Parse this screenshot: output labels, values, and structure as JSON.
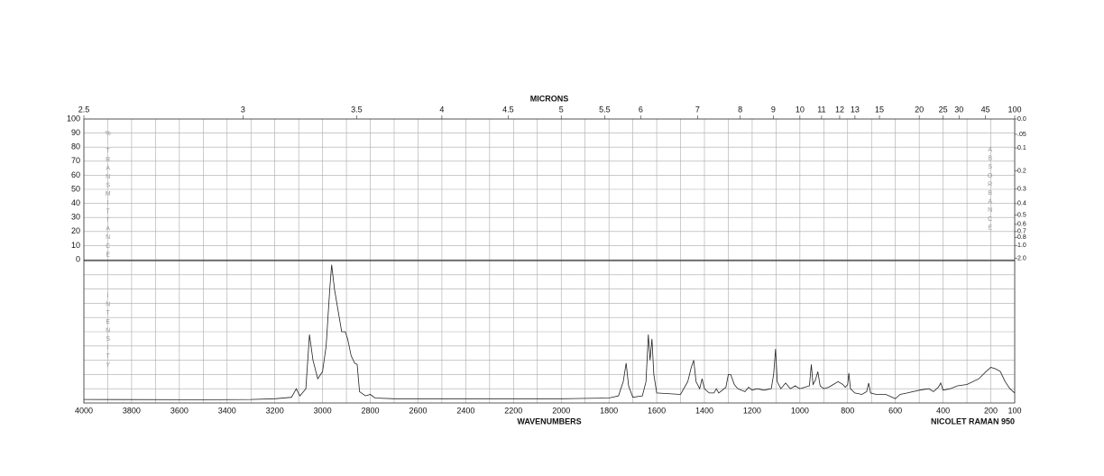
{
  "chart_data": {
    "type": "line",
    "top_axis_label": "MICRONS",
    "xlabel": "WAVENUMBERS",
    "instrument": "NICOLET RAMAN 950",
    "left_top_label": "% TRANSMITTANCE",
    "left_bottom_label": "INTENSITY",
    "right_label": "ABSORBANCE",
    "xlim": [
      4000,
      100
    ],
    "xticks": [
      4000,
      3800,
      3600,
      3400,
      3200,
      3000,
      2800,
      2600,
      2400,
      2200,
      2000,
      1800,
      1600,
      1400,
      1200,
      1000,
      800,
      600,
      400,
      200,
      100
    ],
    "xgrid": [
      4000,
      3900,
      3800,
      3700,
      3600,
      3500,
      3400,
      3300,
      3200,
      3100,
      3000,
      2900,
      2800,
      2700,
      2600,
      2500,
      2400,
      2300,
      2200,
      2100,
      2000,
      1900,
      1800,
      1700,
      1600,
      1500,
      1400,
      1300,
      1200,
      1100,
      1000,
      900,
      800,
      700,
      600,
      500,
      400,
      300,
      200,
      100
    ],
    "micron_ticks": [
      2.5,
      3,
      3.5,
      4,
      4.5,
      5,
      5.5,
      6,
      7,
      8,
      9,
      10,
      11,
      12,
      13,
      15,
      20,
      25,
      30,
      45,
      100
    ],
    "ylim": [
      0,
      100
    ],
    "yticks": [
      0,
      10,
      20,
      30,
      40,
      50,
      60,
      70,
      80,
      90,
      100
    ],
    "absorbance_ticks": [
      {
        "value": 0,
        "label": "0.0"
      },
      {
        "value": 0.05,
        "label": ".05"
      },
      0.1,
      0.2,
      0.3,
      0.4,
      0.5,
      0.6,
      0.7,
      0.8,
      {
        "value": 1,
        "label": "1.0"
      },
      {
        "value": 2,
        "label": "2.0"
      }
    ],
    "intensity_ylim": [
      0,
      100
    ],
    "color": "#222222",
    "x": [
      4000,
      3500,
      3300,
      3200,
      3130,
      3110,
      3095,
      3070,
      3055,
      3040,
      3020,
      3000,
      2985,
      2970,
      2962,
      2950,
      2935,
      2920,
      2905,
      2895,
      2880,
      2865,
      2855,
      2845,
      2820,
      2800,
      2780,
      2700,
      2400,
      2000,
      1800,
      1760,
      1740,
      1728,
      1718,
      1700,
      1660,
      1645,
      1635,
      1628,
      1620,
      1612,
      1600,
      1500,
      1470,
      1455,
      1445,
      1435,
      1420,
      1410,
      1400,
      1380,
      1360,
      1350,
      1340,
      1310,
      1300,
      1290,
      1275,
      1260,
      1230,
      1215,
      1200,
      1180,
      1150,
      1120,
      1110,
      1102,
      1095,
      1080,
      1060,
      1040,
      1020,
      1000,
      980,
      960,
      952,
      945,
      935,
      925,
      915,
      900,
      880,
      860,
      840,
      820,
      810,
      800,
      795,
      788,
      770,
      740,
      720,
      712,
      704,
      680,
      640,
      600,
      580,
      550,
      500,
      460,
      440,
      420,
      410,
      400,
      370,
      340,
      300,
      250,
      220,
      200,
      180,
      160,
      140,
      120,
      100
    ],
    "values": [
      2.5,
      2.3,
      2.5,
      3,
      4,
      10,
      5,
      10,
      48,
      30,
      17,
      22,
      40,
      80,
      97,
      80,
      65,
      50,
      50,
      45,
      33,
      28,
      27,
      8,
      5,
      6,
      3.5,
      3,
      3,
      3,
      3.5,
      5,
      15,
      28,
      12,
      4,
      5,
      15,
      48,
      30,
      45,
      20,
      7,
      6,
      15,
      25,
      30,
      15,
      10,
      17,
      10,
      7,
      7,
      10,
      7,
      11,
      20,
      20,
      13,
      10,
      8,
      11,
      9,
      10,
      9,
      10,
      20,
      38,
      15,
      10,
      14,
      10,
      12,
      10,
      11,
      12,
      27,
      13,
      16,
      22,
      12,
      10,
      11,
      13,
      15,
      13,
      11,
      13,
      21,
      10,
      7,
      6,
      8,
      14,
      7,
      6,
      6,
      3,
      6,
      7,
      9,
      10,
      8,
      11,
      14,
      9,
      10,
      12,
      13,
      17,
      22,
      25,
      24,
      22,
      15,
      10,
      7
    ]
  }
}
